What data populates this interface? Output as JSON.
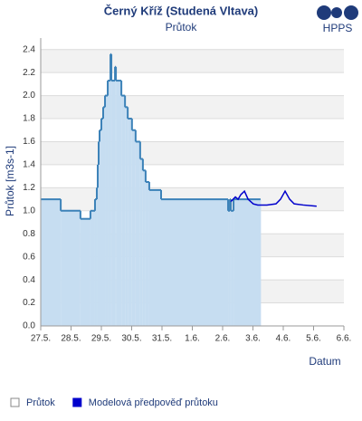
{
  "chart_data": {
    "type": "line",
    "title": "Černý Kříž (Studená Vltava)",
    "subtitle": "Průtok",
    "logo": "HPPS",
    "y_label": "Průtok [m3s-1]",
    "x_label": "Datum",
    "xlim": [
      0,
      10
    ],
    "xticks": [
      {
        "value": 0,
        "label": "27.5."
      },
      {
        "value": 1,
        "label": "28.5."
      },
      {
        "value": 2,
        "label": "29.5."
      },
      {
        "value": 3,
        "label": "30.5."
      },
      {
        "value": 4,
        "label": "31.5."
      },
      {
        "value": 5,
        "label": "1.6."
      },
      {
        "value": 6,
        "label": "2.6."
      },
      {
        "value": 7,
        "label": "3.6."
      },
      {
        "value": 8,
        "label": "4.6."
      },
      {
        "value": 9,
        "label": "5.6."
      },
      {
        "value": 10,
        "label": "6.6."
      }
    ],
    "ylim": [
      0,
      2.5
    ],
    "yticks": [
      {
        "value": 0,
        "label": "0.0"
      },
      0.2,
      0.4,
      0.6,
      0.8,
      {
        "value": 1,
        "label": "1.0"
      },
      1.2,
      1.4,
      1.6,
      1.8,
      {
        "value": 2,
        "label": "2.0"
      },
      2.2,
      2.4
    ],
    "grid": true,
    "series": [
      {
        "name": "Průtok",
        "color": "#3c82b8",
        "fill": "#c6ddf1",
        "step": true,
        "x": [
          0,
          0.66,
          1.31,
          1.64,
          1.79,
          1.85,
          1.88,
          1.91,
          1.94,
          2.0,
          2.06,
          2.12,
          2.21,
          2.3,
          2.33,
          2.45,
          2.48,
          2.66,
          2.78,
          2.87,
          3.01,
          3.13,
          3.28,
          3.37,
          3.46,
          3.58,
          3.97,
          6.18,
          6.24,
          6.27,
          6.36,
          7.25
        ],
        "values": [
          1.1,
          1.0,
          0.93,
          1.0,
          1.1,
          1.2,
          1.4,
          1.6,
          1.7,
          1.8,
          1.9,
          2.0,
          2.13,
          2.36,
          2.13,
          2.25,
          2.13,
          2.0,
          1.9,
          1.8,
          1.7,
          1.6,
          1.45,
          1.35,
          1.25,
          1.18,
          1.1,
          1.0,
          1.1,
          1.0,
          1.1,
          1.1
        ]
      },
      {
        "name": "Modelová předpověď průtoku",
        "color": "#0000cc",
        "step": false,
        "x": [
          6.27,
          6.42,
          6.51,
          6.6,
          6.72,
          6.84,
          7.01,
          7.16,
          7.46,
          7.76,
          7.91,
          8.06,
          8.21,
          8.36,
          8.66,
          9.1
        ],
        "values": [
          1.08,
          1.12,
          1.1,
          1.14,
          1.17,
          1.1,
          1.06,
          1.05,
          1.05,
          1.06,
          1.1,
          1.17,
          1.1,
          1.06,
          1.05,
          1.04
        ]
      }
    ]
  }
}
